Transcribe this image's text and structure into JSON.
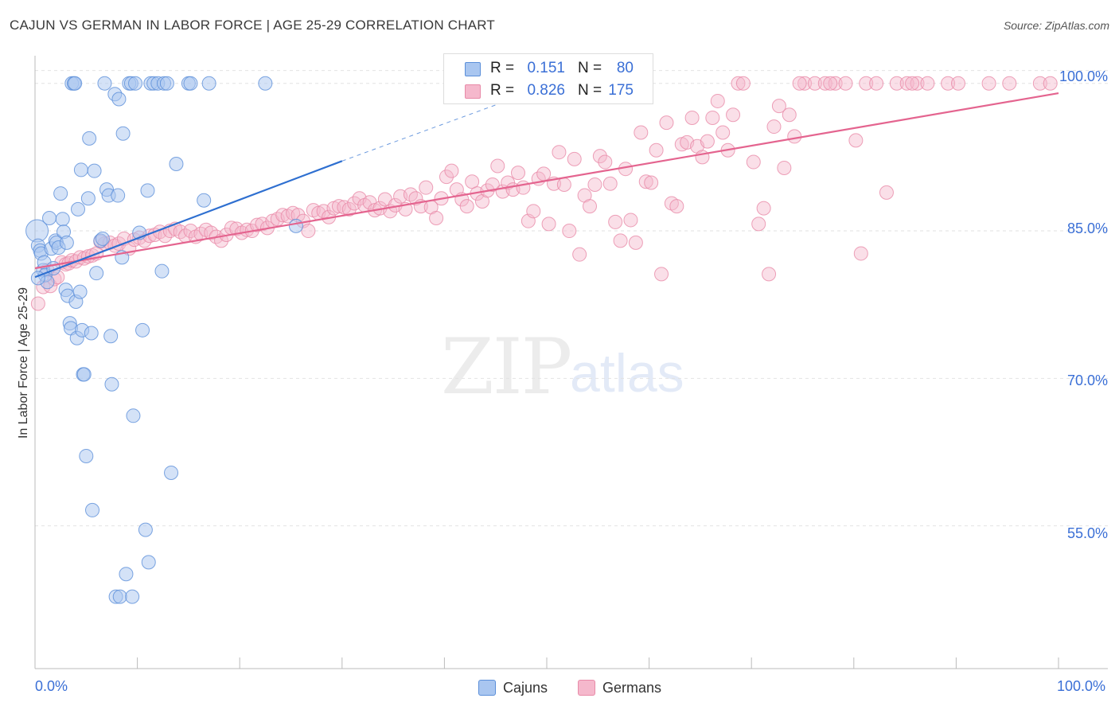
{
  "title": "CAJUN VS GERMAN IN LABOR FORCE | AGE 25-29 CORRELATION CHART",
  "source": "Source: ZipAtlas.com",
  "watermark": {
    "zip": "ZIP",
    "atlas": "atlas"
  },
  "legend_top": {
    "rows": [
      {
        "r_label": "R =",
        "r_value": "0.151",
        "n_label": "N =",
        "n_value": "80",
        "color": "#a9c6f0"
      },
      {
        "r_label": "R =",
        "r_value": "0.826",
        "n_label": "N =",
        "n_value": "175",
        "color": "#f5b8cc"
      }
    ]
  },
  "legend_bottom": [
    {
      "label": "Cajuns",
      "color": "#a9c6f0"
    },
    {
      "label": "Germans",
      "color": "#f5b8cc"
    }
  ],
  "colors": {
    "cajun_fill": "#a9c6f0",
    "cajun_stroke": "#5b8fd9",
    "cajun_line": "#2e6fd0",
    "german_fill": "#f5b8cc",
    "german_stroke": "#e88aa8",
    "german_line": "#e4648f",
    "tick_text": "#3a6fd6",
    "grid": "#e2e2e2"
  },
  "chart_data": {
    "type": "scatter",
    "title": "CAJUN VS GERMAN IN LABOR FORCE | AGE 25-29 CORRELATION CHART",
    "xlabel": "",
    "ylabel": "In Labor Force | Age 25-29",
    "xlim": [
      0,
      100
    ],
    "ylim": [
      40,
      102
    ],
    "x_tick_labels": [
      "0.0%",
      "100.0%"
    ],
    "y_ticks": [
      55,
      70,
      85,
      100
    ],
    "y_tick_labels": [
      "55.0%",
      "70.0%",
      "85.0%",
      "100.0%"
    ],
    "grid": true,
    "series": [
      {
        "name": "Cajuns",
        "trend": {
          "x": [
            0.0,
            30.0
          ],
          "y": [
            80.3,
            92.1
          ],
          "dashed_to": [
            45.0,
            97.8
          ]
        },
        "points": [
          [
            0.2,
            85.0
          ],
          [
            0.3,
            83.5
          ],
          [
            0.5,
            83.0
          ],
          [
            0.6,
            82.7
          ],
          [
            0.8,
            81.0
          ],
          [
            0.9,
            81.8
          ],
          [
            1.0,
            80.5
          ],
          [
            1.2,
            79.8
          ],
          [
            1.4,
            86.3
          ],
          [
            1.6,
            83.2
          ],
          [
            1.8,
            81.2
          ],
          [
            2.0,
            84.0
          ],
          [
            2.1,
            83.8
          ],
          [
            2.3,
            83.3
          ],
          [
            2.5,
            88.8
          ],
          [
            2.7,
            86.2
          ],
          [
            2.8,
            84.9
          ],
          [
            3.0,
            79.0
          ],
          [
            3.1,
            83.8
          ],
          [
            3.2,
            78.4
          ],
          [
            3.4,
            75.6
          ],
          [
            3.5,
            75.1
          ],
          [
            3.6,
            100.0
          ],
          [
            3.8,
            100.0
          ],
          [
            3.9,
            100.0
          ],
          [
            4.0,
            77.8
          ],
          [
            4.1,
            74.1
          ],
          [
            4.2,
            87.2
          ],
          [
            4.4,
            78.8
          ],
          [
            4.5,
            91.2
          ],
          [
            4.6,
            74.9
          ],
          [
            4.7,
            70.4
          ],
          [
            4.8,
            70.4
          ],
          [
            5.0,
            62.1
          ],
          [
            5.2,
            88.3
          ],
          [
            5.3,
            94.4
          ],
          [
            5.5,
            74.6
          ],
          [
            5.6,
            56.6
          ],
          [
            5.8,
            91.1
          ],
          [
            6.0,
            80.7
          ],
          [
            6.4,
            84.0
          ],
          [
            6.6,
            84.2
          ],
          [
            6.8,
            100.0
          ],
          [
            7.0,
            89.2
          ],
          [
            7.2,
            88.6
          ],
          [
            7.4,
            74.3
          ],
          [
            7.5,
            69.4
          ],
          [
            7.8,
            98.9
          ],
          [
            7.9,
            47.8
          ],
          [
            8.1,
            88.6
          ],
          [
            8.2,
            98.4
          ],
          [
            8.3,
            47.8
          ],
          [
            8.5,
            82.3
          ],
          [
            8.6,
            94.9
          ],
          [
            8.9,
            50.1
          ],
          [
            9.2,
            100.0
          ],
          [
            9.4,
            100.0
          ],
          [
            9.5,
            47.8
          ],
          [
            9.6,
            66.2
          ],
          [
            9.8,
            100.0
          ],
          [
            10.2,
            84.8
          ],
          [
            10.5,
            74.9
          ],
          [
            10.8,
            54.6
          ],
          [
            11.0,
            89.1
          ],
          [
            11.1,
            51.3
          ],
          [
            11.3,
            100.0
          ],
          [
            11.6,
            100.0
          ],
          [
            12.0,
            100.0
          ],
          [
            12.4,
            80.9
          ],
          [
            12.6,
            100.0
          ],
          [
            12.9,
            100.0
          ],
          [
            13.3,
            60.4
          ],
          [
            13.8,
            91.8
          ],
          [
            15.0,
            100.0
          ],
          [
            15.2,
            100.0
          ],
          [
            16.5,
            88.1
          ],
          [
            17.0,
            100.0
          ],
          [
            22.5,
            100.0
          ],
          [
            25.5,
            85.5
          ],
          [
            0.3,
            80.2
          ]
        ]
      },
      {
        "name": "Germans",
        "trend": {
          "x": [
            0.0,
            100.0
          ],
          "y": [
            81.2,
            99.0
          ]
        },
        "points": [
          [
            0.3,
            77.6
          ],
          [
            0.8,
            79.3
          ],
          [
            1.2,
            81.0
          ],
          [
            1.5,
            79.4
          ],
          [
            1.9,
            80.1
          ],
          [
            2.2,
            80.3
          ],
          [
            2.6,
            81.8
          ],
          [
            3.0,
            81.6
          ],
          [
            3.3,
            81.7
          ],
          [
            3.6,
            82.0
          ],
          [
            4.0,
            81.9
          ],
          [
            4.4,
            82.3
          ],
          [
            4.8,
            82.2
          ],
          [
            5.2,
            82.4
          ],
          [
            5.6,
            82.5
          ],
          [
            6.0,
            82.7
          ],
          [
            6.4,
            83.9
          ],
          [
            6.8,
            83.7
          ],
          [
            7.3,
            83.8
          ],
          [
            7.8,
            83.5
          ],
          [
            8.2,
            83.7
          ],
          [
            8.7,
            84.2
          ],
          [
            9.2,
            83.2
          ],
          [
            9.7,
            84.1
          ],
          [
            10.2,
            84.3
          ],
          [
            10.7,
            84.0
          ],
          [
            11.2,
            84.5
          ],
          [
            11.7,
            84.6
          ],
          [
            12.2,
            84.9
          ],
          [
            12.7,
            84.5
          ],
          [
            13.2,
            85.0
          ],
          [
            13.7,
            85.2
          ],
          [
            14.2,
            84.9
          ],
          [
            14.7,
            84.5
          ],
          [
            15.2,
            85.0
          ],
          [
            15.7,
            84.4
          ],
          [
            16.2,
            84.7
          ],
          [
            16.7,
            85.1
          ],
          [
            17.2,
            84.8
          ],
          [
            17.7,
            84.4
          ],
          [
            18.2,
            84.0
          ],
          [
            18.7,
            84.6
          ],
          [
            19.2,
            85.3
          ],
          [
            19.7,
            85.2
          ],
          [
            20.2,
            84.8
          ],
          [
            20.7,
            85.1
          ],
          [
            21.2,
            85.0
          ],
          [
            21.7,
            85.6
          ],
          [
            22.2,
            85.7
          ],
          [
            22.7,
            85.3
          ],
          [
            23.2,
            86.0
          ],
          [
            23.7,
            86.2
          ],
          [
            24.2,
            86.6
          ],
          [
            24.7,
            86.5
          ],
          [
            25.2,
            86.8
          ],
          [
            25.7,
            86.6
          ],
          [
            26.2,
            86.0
          ],
          [
            26.7,
            85.0
          ],
          [
            27.2,
            87.1
          ],
          [
            27.7,
            86.8
          ],
          [
            28.2,
            87.0
          ],
          [
            28.7,
            86.4
          ],
          [
            29.2,
            87.3
          ],
          [
            29.7,
            87.5
          ],
          [
            30.2,
            87.4
          ],
          [
            30.7,
            87.2
          ],
          [
            31.2,
            87.8
          ],
          [
            31.7,
            88.3
          ],
          [
            32.2,
            87.6
          ],
          [
            32.7,
            87.9
          ],
          [
            33.2,
            87.1
          ],
          [
            33.7,
            87.3
          ],
          [
            34.2,
            88.2
          ],
          [
            34.7,
            87.0
          ],
          [
            35.2,
            87.6
          ],
          [
            35.7,
            88.5
          ],
          [
            36.2,
            87.2
          ],
          [
            36.7,
            88.7
          ],
          [
            37.2,
            88.3
          ],
          [
            37.7,
            87.5
          ],
          [
            38.2,
            89.4
          ],
          [
            38.7,
            87.4
          ],
          [
            39.2,
            86.3
          ],
          [
            39.7,
            88.3
          ],
          [
            40.2,
            90.5
          ],
          [
            40.7,
            91.1
          ],
          [
            41.2,
            89.2
          ],
          [
            41.7,
            88.2
          ],
          [
            42.2,
            87.5
          ],
          [
            42.7,
            90.0
          ],
          [
            43.2,
            88.8
          ],
          [
            43.7,
            88.0
          ],
          [
            44.2,
            89.1
          ],
          [
            44.7,
            89.7
          ],
          [
            45.2,
            91.6
          ],
          [
            45.7,
            89.0
          ],
          [
            46.2,
            89.9
          ],
          [
            46.7,
            89.2
          ],
          [
            47.2,
            90.9
          ],
          [
            47.7,
            89.4
          ],
          [
            48.2,
            86.0
          ],
          [
            48.7,
            87.0
          ],
          [
            49.2,
            90.3
          ],
          [
            49.7,
            90.8
          ],
          [
            50.2,
            85.7
          ],
          [
            50.7,
            89.8
          ],
          [
            51.2,
            93.0
          ],
          [
            51.7,
            89.7
          ],
          [
            52.2,
            85.0
          ],
          [
            52.7,
            92.3
          ],
          [
            53.2,
            82.6
          ],
          [
            53.7,
            88.6
          ],
          [
            54.2,
            87.5
          ],
          [
            54.7,
            89.7
          ],
          [
            55.2,
            92.6
          ],
          [
            55.7,
            92.0
          ],
          [
            56.2,
            89.8
          ],
          [
            56.7,
            85.9
          ],
          [
            57.2,
            84.0
          ],
          [
            57.7,
            91.3
          ],
          [
            58.2,
            86.1
          ],
          [
            58.7,
            83.8
          ],
          [
            59.2,
            95.0
          ],
          [
            59.7,
            90.0
          ],
          [
            60.2,
            89.9
          ],
          [
            60.7,
            93.2
          ],
          [
            61.2,
            80.6
          ],
          [
            61.7,
            96.0
          ],
          [
            62.2,
            87.8
          ],
          [
            62.7,
            87.5
          ],
          [
            63.2,
            93.8
          ],
          [
            63.7,
            94.0
          ],
          [
            64.2,
            96.5
          ],
          [
            64.7,
            93.6
          ],
          [
            65.2,
            92.5
          ],
          [
            65.7,
            94.1
          ],
          [
            66.2,
            96.5
          ],
          [
            66.7,
            98.2
          ],
          [
            67.2,
            95.0
          ],
          [
            67.7,
            93.2
          ],
          [
            68.2,
            96.8
          ],
          [
            68.7,
            100.0
          ],
          [
            69.2,
            100.0
          ],
          [
            70.2,
            92.0
          ],
          [
            70.7,
            85.7
          ],
          [
            71.2,
            87.3
          ],
          [
            71.7,
            80.6
          ],
          [
            72.2,
            95.6
          ],
          [
            72.7,
            97.7
          ],
          [
            73.2,
            91.4
          ],
          [
            73.7,
            96.8
          ],
          [
            74.2,
            94.6
          ],
          [
            75.2,
            100.0
          ],
          [
            76.2,
            100.0
          ],
          [
            77.2,
            100.0
          ],
          [
            78.2,
            100.0
          ],
          [
            79.2,
            100.0
          ],
          [
            80.2,
            94.2
          ],
          [
            80.7,
            82.7
          ],
          [
            81.2,
            100.0
          ],
          [
            82.2,
            100.0
          ],
          [
            83.2,
            88.9
          ],
          [
            84.2,
            100.0
          ],
          [
            85.2,
            100.0
          ],
          [
            86.2,
            100.0
          ],
          [
            87.2,
            100.0
          ],
          [
            89.2,
            100.0
          ],
          [
            90.2,
            100.0
          ],
          [
            93.2,
            100.0
          ],
          [
            95.2,
            100.0
          ],
          [
            98.2,
            100.0
          ],
          [
            99.2,
            100.0
          ],
          [
            85.7,
            100.0
          ],
          [
            74.7,
            100.0
          ],
          [
            77.7,
            100.0
          ]
        ]
      }
    ]
  }
}
